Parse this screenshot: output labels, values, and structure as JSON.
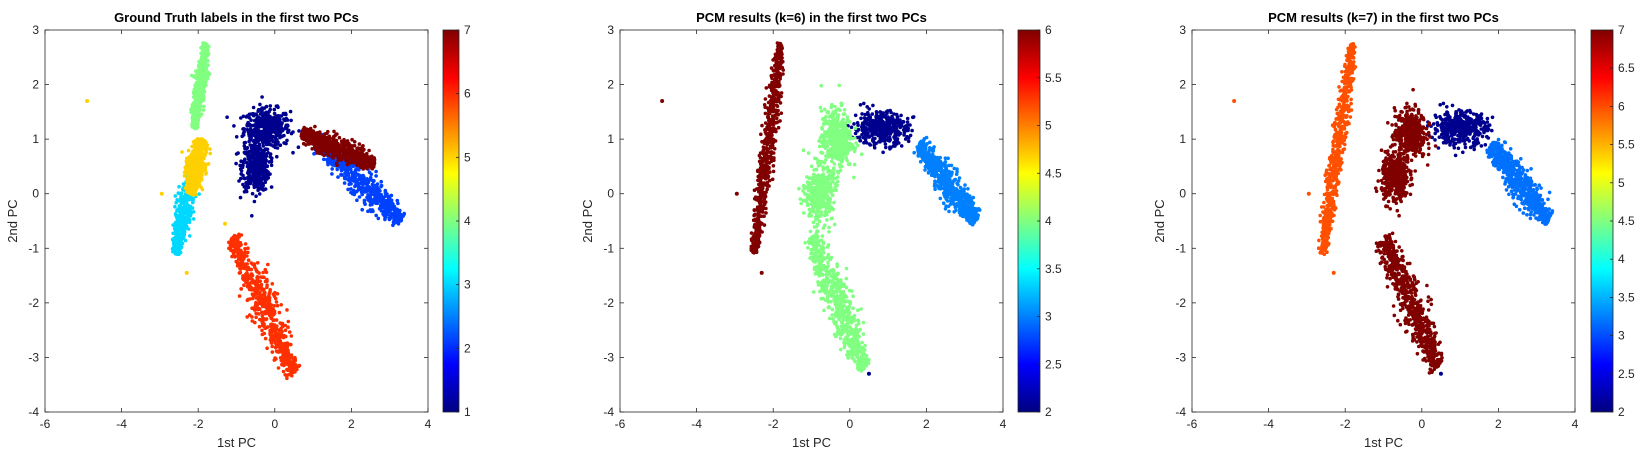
{
  "chart_data": [
    {
      "type": "scatter",
      "title": "Ground Truth labels in the first two PCs",
      "xlabel": "1st PC",
      "ylabel": "2nd PC",
      "xlim": [
        -6,
        4
      ],
      "ylim": [
        -4,
        3
      ],
      "xticks": [
        "-6",
        "-4",
        "-2",
        "0",
        "2",
        "4"
      ],
      "yticks": [
        "-4",
        "-3",
        "-2",
        "-1",
        "0",
        "1",
        "2",
        "3"
      ],
      "colormap": "jet",
      "colorbar": {
        "range": [
          1,
          7
        ],
        "ticks": [
          "1",
          "2",
          "3",
          "4",
          "5",
          "6",
          "7"
        ]
      },
      "clusters": [
        {
          "value": 1,
          "color": "#00008f",
          "shape": "blob",
          "center": [
            -0.2,
            1.2
          ],
          "spread": [
            0.6,
            0.35
          ]
        },
        {
          "value": 1,
          "color": "#00008f",
          "shape": "blob",
          "center": [
            -0.5,
            0.5
          ],
          "spread": [
            0.35,
            0.45
          ]
        },
        {
          "value": 2,
          "color": "#0040ff",
          "shape": "segment",
          "from": [
            1.1,
            1.0
          ],
          "to": [
            3.3,
            -0.5
          ],
          "width": 0.12
        },
        {
          "value": 3,
          "color": "#00d8ff",
          "shape": "segment",
          "from": [
            -2.6,
            -1.1
          ],
          "to": [
            -2.1,
            0.6
          ],
          "width": 0.08
        },
        {
          "value": 4,
          "color": "#80ff80",
          "shape": "segment",
          "from": [
            -2.1,
            1.2
          ],
          "to": [
            -1.8,
            2.75
          ],
          "width": 0.06
        },
        {
          "value": 5,
          "color": "#ffd000",
          "shape": "segment",
          "from": [
            -2.2,
            0.0
          ],
          "to": [
            -1.9,
            1.0
          ],
          "width": 0.1
        },
        {
          "value": 6,
          "color": "#ff3000",
          "shape": "segment",
          "from": [
            -1.1,
            -0.8
          ],
          "to": [
            0.5,
            -3.3
          ],
          "width": 0.14
        },
        {
          "value": 7,
          "color": "#800000",
          "shape": "segment",
          "from": [
            0.7,
            1.1
          ],
          "to": [
            2.6,
            0.55
          ],
          "width": 0.09
        }
      ],
      "outliers": [
        {
          "x": -4.9,
          "y": 1.7,
          "color": "#ffd000"
        },
        {
          "x": -2.95,
          "y": 0.0,
          "color": "#ffd000"
        },
        {
          "x": -2.3,
          "y": -1.45,
          "color": "#ffd000"
        },
        {
          "x": -1.3,
          "y": -0.55,
          "color": "#ffd000"
        }
      ]
    },
    {
      "type": "scatter",
      "title": "PCM results (k=6) in the first two PCs",
      "xlabel": "1st PC",
      "ylabel": "2nd PC",
      "xlim": [
        -6,
        4
      ],
      "ylim": [
        -4,
        3
      ],
      "xticks": [
        "-6",
        "-4",
        "-2",
        "0",
        "2",
        "4"
      ],
      "yticks": [
        "-4",
        "-3",
        "-2",
        "-1",
        "0",
        "1",
        "2",
        "3"
      ],
      "colormap": "jet",
      "colorbar": {
        "range": [
          2,
          6
        ],
        "ticks": [
          "2",
          "2.5",
          "3",
          "3.5",
          "4",
          "4.5",
          "5",
          "5.5",
          "6"
        ]
      },
      "clusters": [
        {
          "value": 2,
          "color": "#00008f",
          "shape": "blob",
          "center": [
            0.8,
            1.2
          ],
          "spread": [
            0.7,
            0.3
          ]
        },
        {
          "value": 3,
          "color": "#0080ff",
          "shape": "segment",
          "from": [
            1.8,
            0.9
          ],
          "to": [
            3.3,
            -0.5
          ],
          "width": 0.12
        },
        {
          "value": 4,
          "color": "#80ff80",
          "shape": "blob",
          "center": [
            -0.35,
            1.0
          ],
          "spread": [
            0.4,
            0.55
          ]
        },
        {
          "value": 4,
          "color": "#80ff80",
          "shape": "segment",
          "from": [
            -1.0,
            -0.8
          ],
          "to": [
            0.4,
            -3.2
          ],
          "width": 0.14
        },
        {
          "value": 4,
          "color": "#80ff80",
          "shape": "blob",
          "center": [
            -0.8,
            0.0
          ],
          "spread": [
            0.35,
            0.5
          ]
        },
        {
          "value": 6,
          "color": "#800000",
          "shape": "segment",
          "from": [
            -2.5,
            -1.1
          ],
          "to": [
            -1.8,
            2.75
          ],
          "width": 0.08
        }
      ],
      "outliers": [
        {
          "x": -4.9,
          "y": 1.7,
          "color": "#800000"
        },
        {
          "x": -2.95,
          "y": 0.0,
          "color": "#800000"
        },
        {
          "x": -2.3,
          "y": -1.45,
          "color": "#800000"
        },
        {
          "x": 0.5,
          "y": -3.3,
          "color": "#00008f"
        }
      ]
    },
    {
      "type": "scatter",
      "title": "PCM results (k=7) in the first two PCs",
      "xlabel": "1st PC",
      "ylabel": "2nd PC",
      "xlim": [
        -6,
        4
      ],
      "ylim": [
        -4,
        3
      ],
      "xticks": [
        "-6",
        "-4",
        "-2",
        "0",
        "2",
        "4"
      ],
      "yticks": [
        "-4",
        "-3",
        "-2",
        "-1",
        "0",
        "1",
        "2",
        "3"
      ],
      "colormap": "jet",
      "colorbar": {
        "range": [
          2,
          7
        ],
        "ticks": [
          "2",
          "2.5",
          "3",
          "3.5",
          "4",
          "4.5",
          "5",
          "5.5",
          "6",
          "6.5",
          "7"
        ]
      },
      "clusters": [
        {
          "value": 2,
          "color": "#00008f",
          "shape": "blob",
          "center": [
            1.0,
            1.2
          ],
          "spread": [
            0.7,
            0.3
          ]
        },
        {
          "value": 3,
          "color": "#0070ff",
          "shape": "segment",
          "from": [
            1.8,
            0.9
          ],
          "to": [
            3.3,
            -0.5
          ],
          "width": 0.12
        },
        {
          "value": 7,
          "color": "#800000",
          "shape": "blob",
          "center": [
            -0.3,
            1.1
          ],
          "spread": [
            0.4,
            0.45
          ]
        },
        {
          "value": 7,
          "color": "#800000",
          "shape": "blob",
          "center": [
            -0.7,
            0.3
          ],
          "spread": [
            0.35,
            0.45
          ]
        },
        {
          "value": 7,
          "color": "#800000",
          "shape": "segment",
          "from": [
            -1.0,
            -0.8
          ],
          "to": [
            0.4,
            -3.2
          ],
          "width": 0.14
        },
        {
          "value": 6,
          "color": "#ff5000",
          "shape": "segment",
          "from": [
            -2.6,
            -1.1
          ],
          "to": [
            -1.8,
            2.75
          ],
          "width": 0.08
        }
      ],
      "outliers": [
        {
          "x": -4.9,
          "y": 1.7,
          "color": "#ff5000"
        },
        {
          "x": -2.95,
          "y": 0.0,
          "color": "#ff5000"
        },
        {
          "x": -2.3,
          "y": -1.45,
          "color": "#ff5000"
        },
        {
          "x": 0.5,
          "y": -3.3,
          "color": "#00008f"
        }
      ]
    }
  ]
}
